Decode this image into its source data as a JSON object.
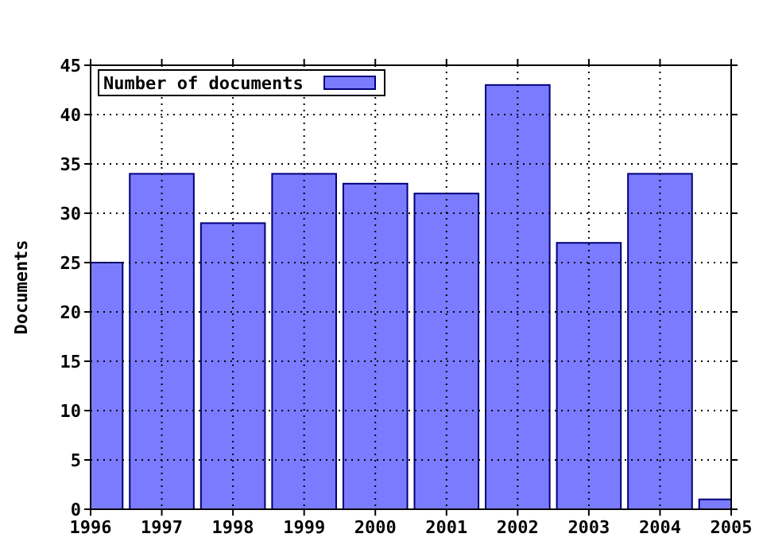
{
  "chart_data": {
    "type": "bar",
    "ylabel": "Documents",
    "x": [
      1996,
      1997,
      1998,
      1999,
      2000,
      2001,
      2002,
      2003,
      2004,
      2005
    ],
    "series": [
      {
        "name": "Number of documents",
        "color": "#7b7bff",
        "values": [
          25,
          34,
          29,
          34,
          33,
          32,
          43,
          27,
          34,
          1
        ]
      }
    ],
    "xlim": [
      1996,
      2005
    ],
    "xticks": [
      1996,
      1997,
      1998,
      1999,
      2000,
      2001,
      2002,
      2003,
      2004,
      2005
    ],
    "ylim": [
      0,
      45
    ],
    "yticks": [
      0,
      5,
      10,
      15,
      20,
      25,
      30,
      35,
      40,
      45
    ],
    "grid": true,
    "legend": "top left"
  }
}
